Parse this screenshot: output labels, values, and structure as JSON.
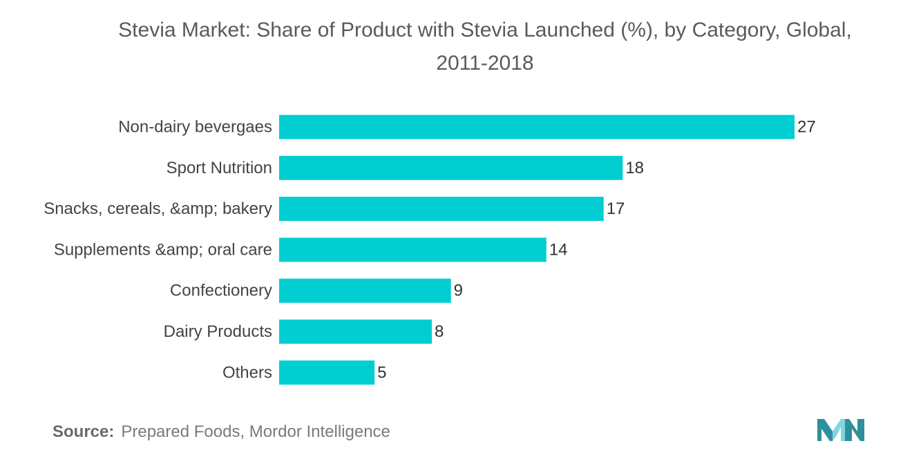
{
  "source": {
    "label": "Source:",
    "text": "Prepared Foods, Mordor Intelligence"
  },
  "colors": {
    "bar": "#00CED1",
    "logo_dark": "#2f8f9d",
    "logo_light": "#7fd6df"
  },
  "chart_data": {
    "type": "bar",
    "orientation": "horizontal",
    "title": "Stevia Market: Share of Product with Stevia Launched (%), by Category, Global,\n2011-2018",
    "xlabel": "",
    "ylabel": "",
    "categories": [
      "Non-dairy bevergaes",
      "Sport Nutrition",
      "Snacks, cereals, &amp; bakery",
      "Supplements &amp; oral care",
      "Confectionery",
      "Dairy Products",
      "Others"
    ],
    "values": [
      27,
      18,
      17,
      14,
      9,
      8,
      5
    ],
    "xlim": [
      0,
      27
    ],
    "grid": false,
    "legend": "none",
    "data_labels": true
  }
}
